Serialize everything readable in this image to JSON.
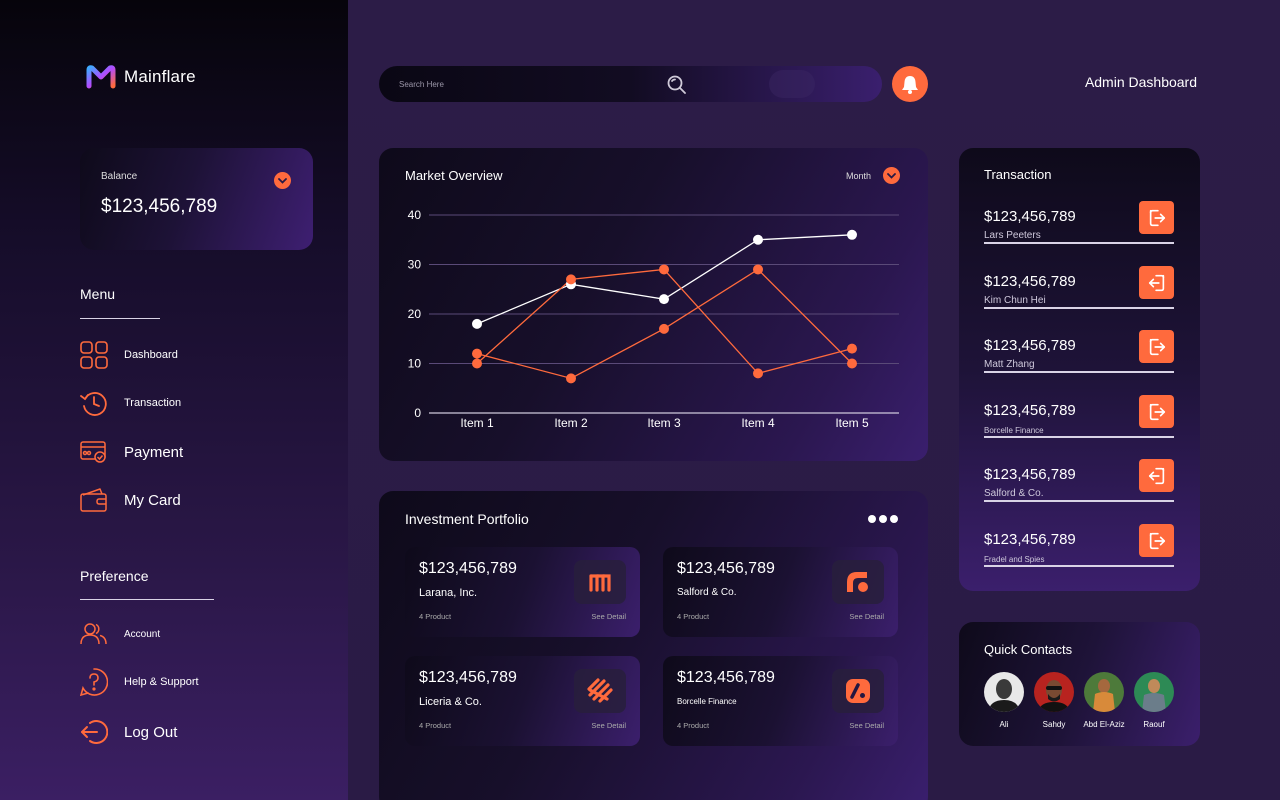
{
  "app": {
    "name": "Mainflare"
  },
  "balance": {
    "label": "Balance",
    "amount": "$123,456,789"
  },
  "menu": {
    "title": "Menu",
    "items": [
      {
        "label": "Dashboard",
        "icon": "grid-icon"
      },
      {
        "label": "Transaction",
        "icon": "history-icon"
      },
      {
        "label": "Payment",
        "icon": "card-check-icon"
      },
      {
        "label": "My Card",
        "icon": "wallet-icon"
      }
    ]
  },
  "preference": {
    "title": "Preference",
    "items": [
      {
        "label": "Account",
        "icon": "users-icon"
      },
      {
        "label": "Help & Support",
        "icon": "help-icon"
      },
      {
        "label": "Log Out",
        "icon": "logout-icon"
      }
    ]
  },
  "header": {
    "search_placeholder": "Search Here",
    "title": "Admin Dashboard"
  },
  "colors": {
    "accent": "#ff6a3d",
    "background": "#2a1a45",
    "line_white": "#ffffff"
  },
  "market": {
    "title": "Market Overview",
    "period": "Month"
  },
  "chart_data": {
    "type": "line",
    "title": "Market Overview",
    "categories": [
      "Item 1",
      "Item 2",
      "Item 3",
      "Item 4",
      "Item 5"
    ],
    "yticks": [
      "0",
      "10",
      "20",
      "30",
      "40"
    ],
    "ylim": [
      0,
      40
    ],
    "grid": true,
    "series": [
      {
        "color": "#ffffff",
        "values": [
          18,
          26,
          23,
          35,
          36
        ]
      },
      {
        "color": "#ff6a3d",
        "values": [
          12,
          7,
          17,
          29,
          10
        ]
      },
      {
        "color": "#ff6a3d",
        "values": [
          10,
          27,
          29,
          8,
          13
        ]
      }
    ]
  },
  "transaction": {
    "title": "Transaction",
    "rows": [
      {
        "amount": "$123,456,789",
        "name": "Lars Peeters",
        "direction": "out"
      },
      {
        "amount": "$123,456,789",
        "name": "Kim Chun Hei",
        "direction": "in"
      },
      {
        "amount": "$123,456,789",
        "name": "Matt Zhang",
        "direction": "out"
      },
      {
        "amount": "$123,456,789",
        "name": "Borcelle Finance",
        "direction": "out"
      },
      {
        "amount": "$123,456,789",
        "name": "Salford & Co.",
        "direction": "in"
      },
      {
        "amount": "$123,456,789",
        "name": "Fradel and Spies",
        "direction": "out"
      }
    ]
  },
  "portfolio": {
    "title": "Investment Portfolio",
    "items": [
      {
        "amount": "$123,456,789",
        "name": "Larana, Inc.",
        "count": "4 Product",
        "detail": "See Detail"
      },
      {
        "amount": "$123,456,789",
        "name": "Salford & Co.",
        "count": "4 Product",
        "detail": "See Detail"
      },
      {
        "amount": "$123,456,789",
        "name": "Liceria & Co.",
        "count": "4 Product",
        "detail": "See Detail"
      },
      {
        "amount": "$123,456,789",
        "name": "Borcelle Finance",
        "count": "4 Product",
        "detail": "See Detail"
      }
    ]
  },
  "contacts": {
    "title": "Quick Contacts",
    "people": [
      {
        "name": "Ali"
      },
      {
        "name": "Sahdy"
      },
      {
        "name": "Abd El-Aziz"
      },
      {
        "name": "Raouf"
      }
    ]
  }
}
